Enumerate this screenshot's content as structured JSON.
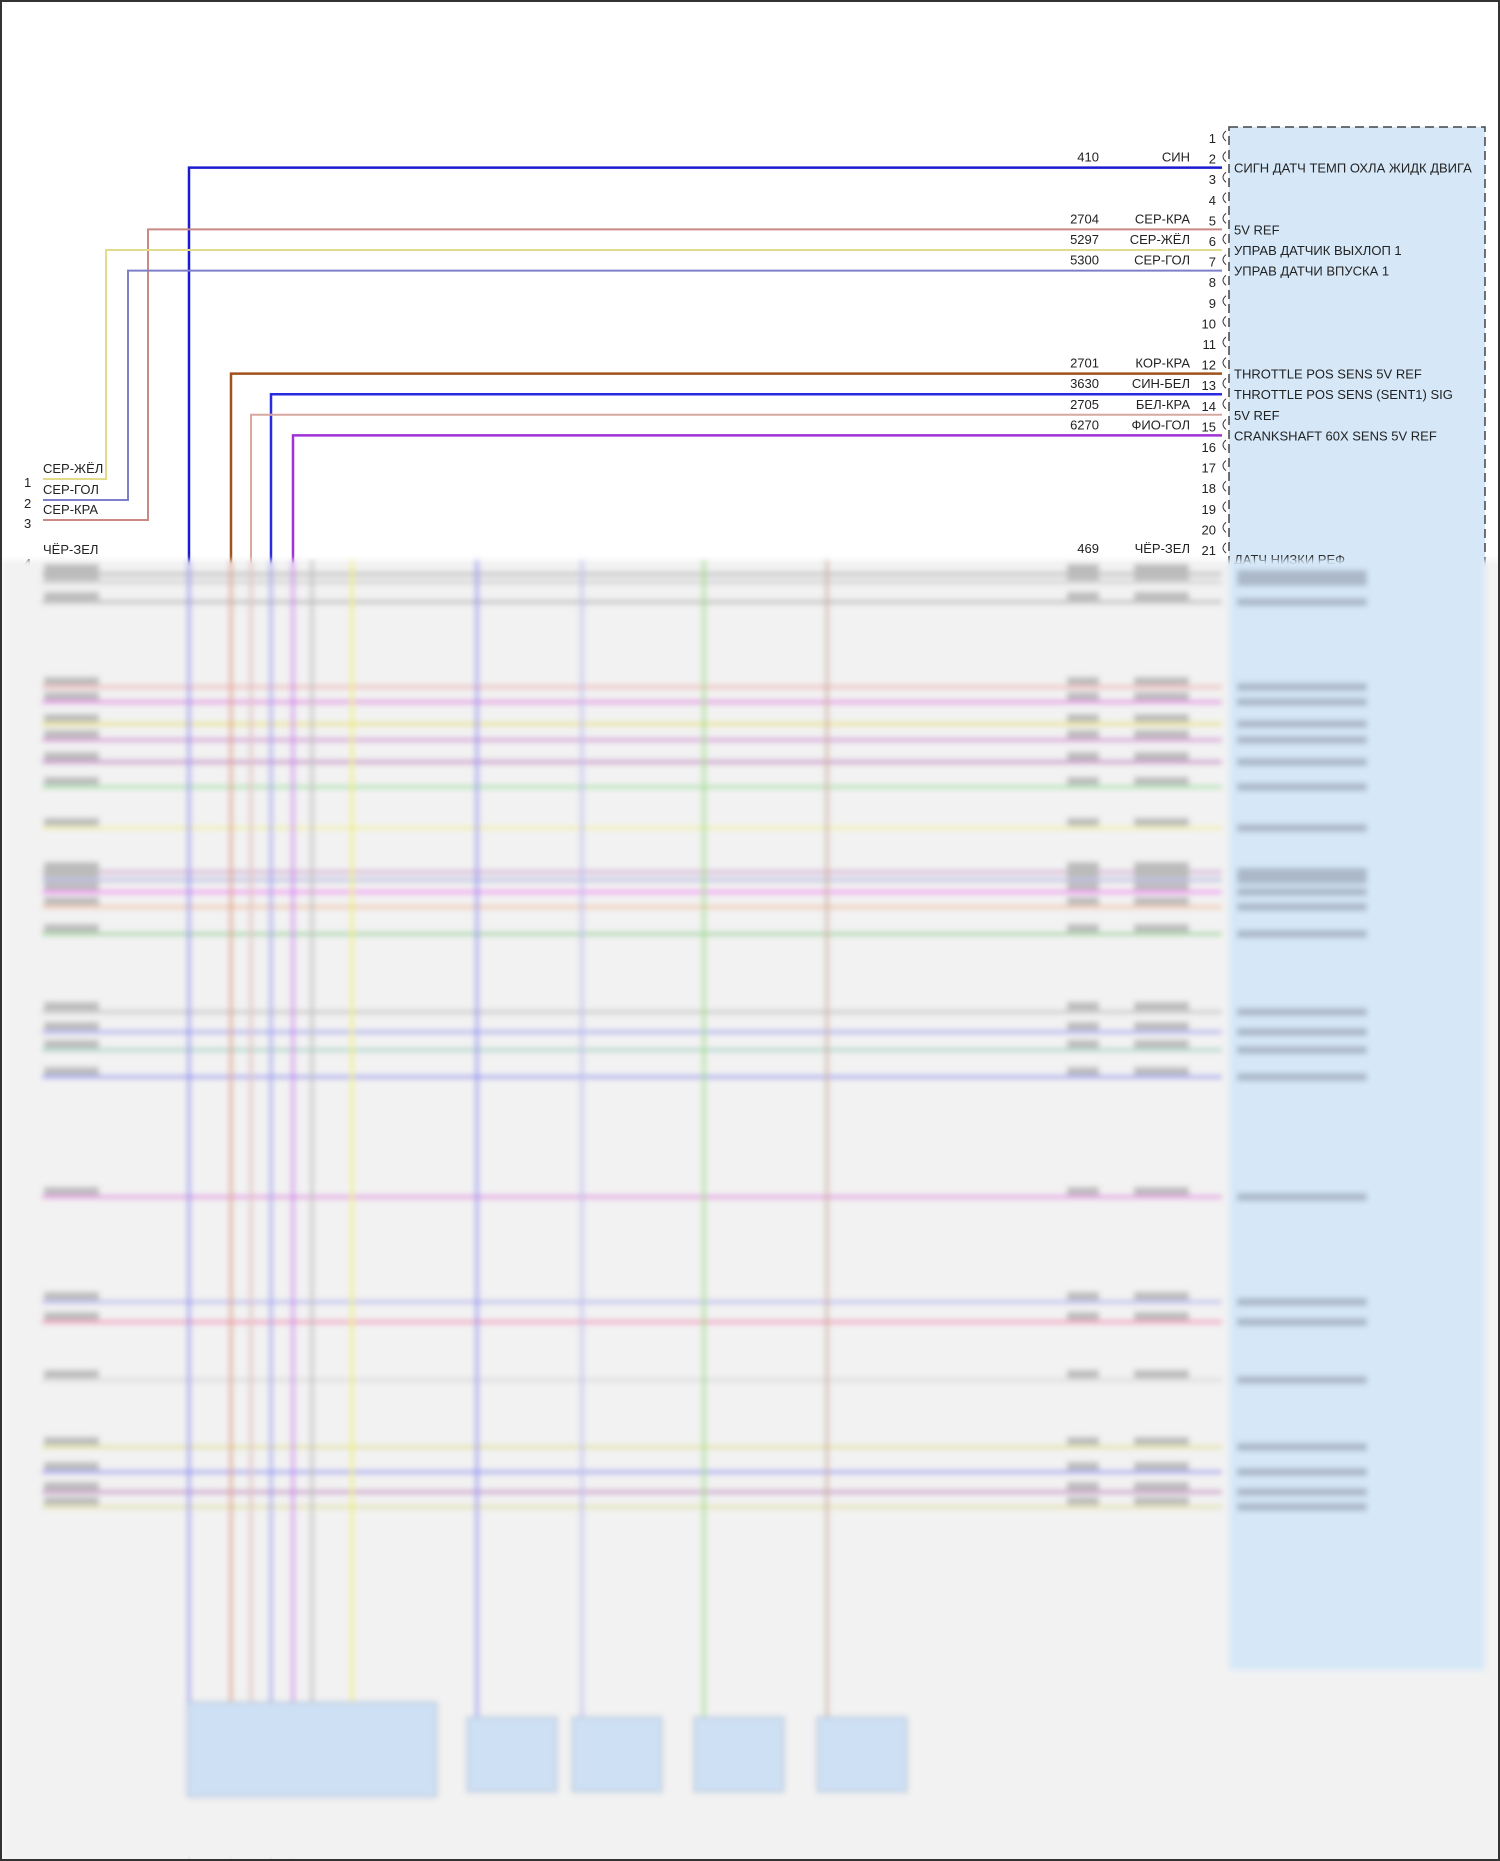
{
  "module": {
    "pins": [
      {
        "pin": "1"
      },
      {
        "pin": "2",
        "circuit": "410",
        "color": "СИН",
        "function": "СИГН ДАТЧ ТЕМП ОХЛА ЖИДК ДВИГА",
        "hex": "#1a1ad0"
      },
      {
        "pin": "3"
      },
      {
        "pin": "4"
      },
      {
        "pin": "5",
        "circuit": "2704",
        "color": "СЕР-КРА",
        "function": "5V REF",
        "hex": "#c98a86"
      },
      {
        "pin": "6",
        "circuit": "5297",
        "color": "СЕР-ЖЁЛ",
        "function": "УПРАВ ДАТЧИК ВЫХЛОП 1",
        "hex": "#e2dc8a"
      },
      {
        "pin": "7",
        "circuit": "5300",
        "color": "СЕР-ГОЛ",
        "function": "УПРАВ ДАТЧИ ВПУСКА 1",
        "hex": "#7d7fc8"
      },
      {
        "pin": "8"
      },
      {
        "pin": "9"
      },
      {
        "pin": "10"
      },
      {
        "pin": "11"
      },
      {
        "pin": "12",
        "circuit": "2701",
        "color": "КОР-КРА",
        "function": "THROTTLE POS SENS 5V REF",
        "hex": "#a0521a"
      },
      {
        "pin": "13",
        "circuit": "3630",
        "color": "СИН-БЕЛ",
        "function": "THROTTLE POS SENS (SENT1) SIG",
        "hex": "#2a2ae0"
      },
      {
        "pin": "14",
        "circuit": "2705",
        "color": "БЕЛ-КРА",
        "function": "5V REF",
        "hex": "#d8a8a0"
      },
      {
        "pin": "15",
        "circuit": "6270",
        "color": "ФИО-ГОЛ",
        "function": "CRANKSHAFT 60X SENS 5V REF",
        "hex": "#a030d8"
      },
      {
        "pin": "16"
      },
      {
        "pin": "17"
      },
      {
        "pin": "18"
      },
      {
        "pin": "19"
      },
      {
        "pin": "20"
      },
      {
        "pin": "21",
        "circuit": "469",
        "color": "ЧЁР-ЗЕЛ",
        "function": "ДАТЧ НИЗКИ РЕФ",
        "hex": "#2a6a2a"
      }
    ]
  },
  "left_connector": {
    "pins": [
      {
        "pin": "1",
        "color": "СЕР-ЖЁЛ",
        "hex": "#e2dc8a"
      },
      {
        "pin": "2",
        "color": "СЕР-ГОЛ",
        "hex": "#7d7fc8"
      },
      {
        "pin": "3",
        "color": "СЕР-КРА",
        "hex": "#c98a86"
      },
      {
        "pin": "4",
        "color": "ЧЁР-ЗЕЛ",
        "hex": "#2a6a2a"
      }
    ]
  },
  "blurred_wire_colors": [
    "#b0b0b0",
    "#c8c8c8",
    "#b0b0b0",
    "#f0b0b0",
    "#e070e0",
    "#e8e060",
    "#d080d0",
    "#c070c0",
    "#a0e0a0",
    "#f0f0a0",
    "#d0a0d0",
    "#b0b0e0",
    "#f070f0",
    "#f0c0a0",
    "#90d090",
    "#c0c0c0",
    "#a0a0f0",
    "#a0d0c0",
    "#9090f0",
    "#e080e0",
    "#b0b0f0",
    "#f080b0",
    "#d8d8d8",
    "#e0e090",
    "#9090f0",
    "#c080c0",
    "#e0e0a0"
  ],
  "module_fill": "#d6e8f8"
}
